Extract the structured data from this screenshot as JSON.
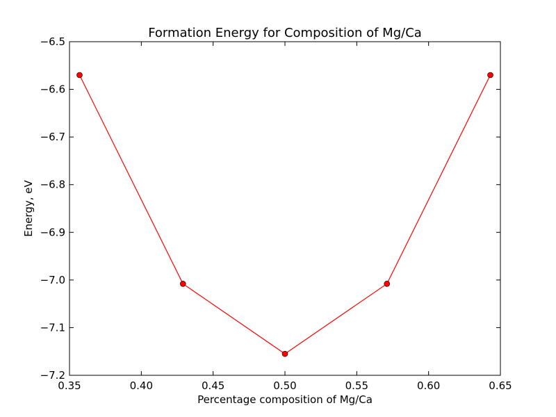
{
  "chart_data": {
    "type": "line",
    "title": "Formation Energy for Composition of Mg/Ca",
    "xlabel": "Percentage composition of Mg/Ca",
    "ylabel": "Energy, eV",
    "xlim": [
      0.35,
      0.65
    ],
    "ylim": [
      -7.2,
      -6.5
    ],
    "xticks": [
      0.35,
      0.4,
      0.45,
      0.5,
      0.55,
      0.6,
      0.65
    ],
    "xtick_labels": [
      "0.35",
      "0.40",
      "0.45",
      "0.50",
      "0.55",
      "0.60",
      "0.65"
    ],
    "yticks": [
      -6.5,
      -6.6,
      -6.7,
      -6.8,
      -6.9,
      -7.0,
      -7.1,
      -7.2
    ],
    "ytick_labels": [
      "−6.5",
      "−6.6",
      "−6.7",
      "−6.8",
      "−6.9",
      "−7.0",
      "−7.1",
      "−7.2"
    ],
    "grid": false,
    "series": [
      {
        "x": [
          0.357,
          0.429,
          0.5,
          0.571,
          0.643
        ],
        "y": [
          -6.57,
          -7.008,
          -7.155,
          -7.008,
          -6.57
        ],
        "color": "#ff0000",
        "marker": "circle"
      }
    ]
  }
}
